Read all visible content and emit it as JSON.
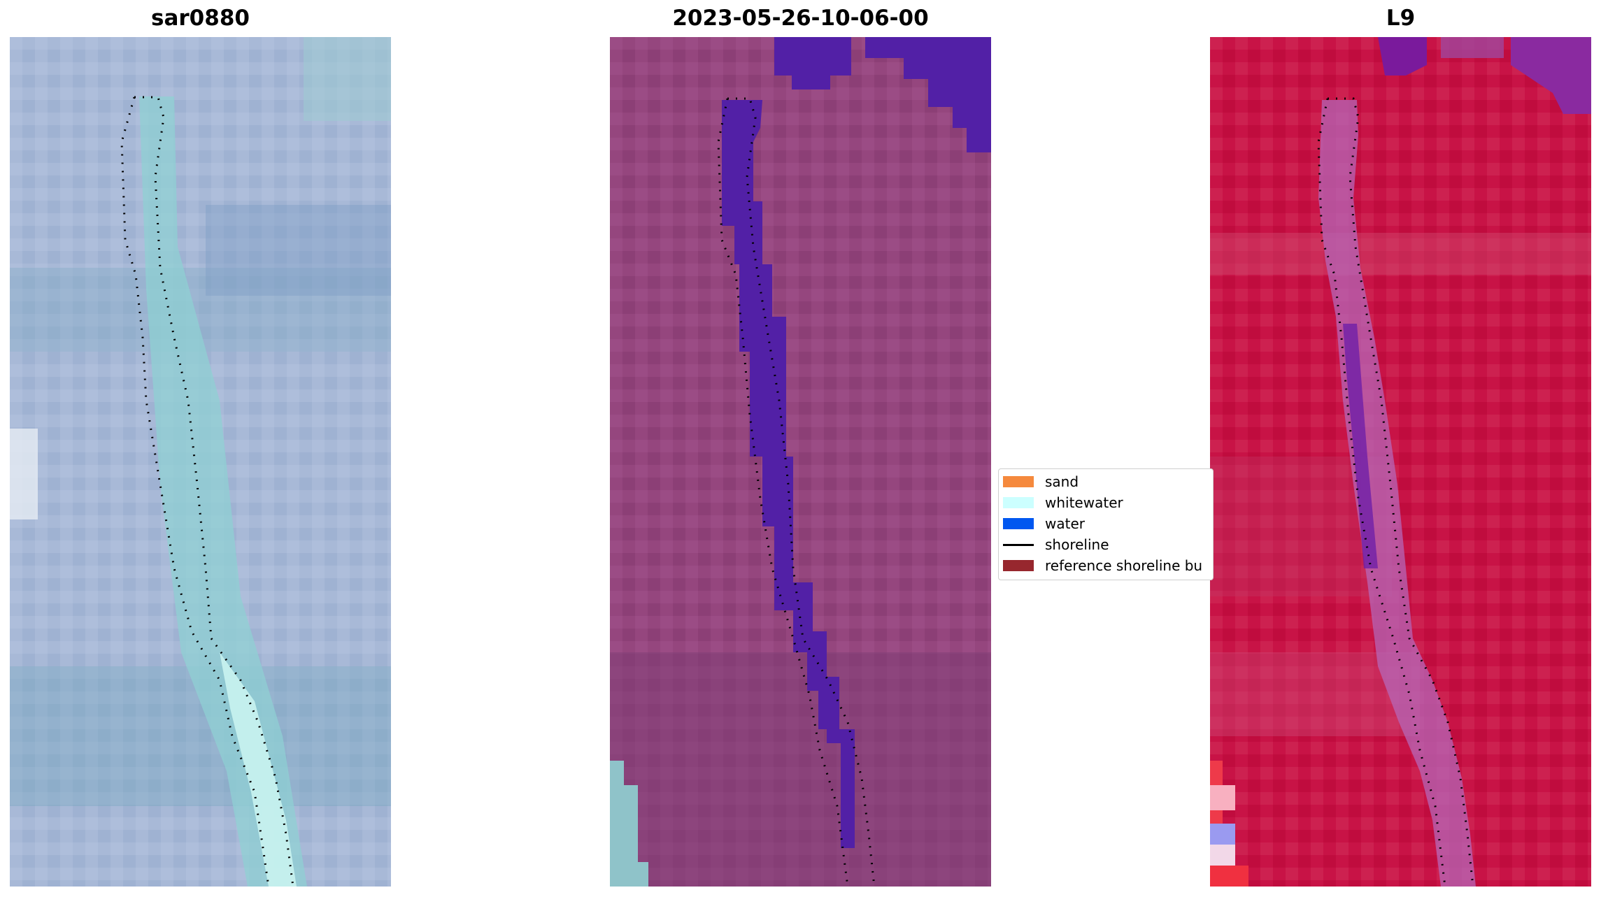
{
  "panels": [
    {
      "title": "sar0880",
      "image": "RGB satellite image of a narrow channel with shoreline points overlay"
    },
    {
      "title": "2023-05-26-10-06-00",
      "image": "Classified image with water class in purple and shoreline points overlay"
    },
    {
      "title": "L9",
      "image": "False-color satellite image with shoreline points overlay"
    }
  ],
  "legend": {
    "items": [
      {
        "label": "sand",
        "color": "#f5893d",
        "kind": "patch"
      },
      {
        "label": "whitewater",
        "color": "#ccffff",
        "kind": "patch"
      },
      {
        "label": "water",
        "color": "#0057f0",
        "kind": "patch"
      },
      {
        "label": "shoreline",
        "color": "#000000",
        "kind": "line"
      },
      {
        "label": "reference shoreline bu",
        "color": "#97272e",
        "kind": "patch"
      }
    ]
  },
  "colors": {
    "panel1_base": "#a6b8d6",
    "panel2_base": "#95467e",
    "panel2_water": "#5220a6",
    "panel3_base": "#c81346"
  }
}
